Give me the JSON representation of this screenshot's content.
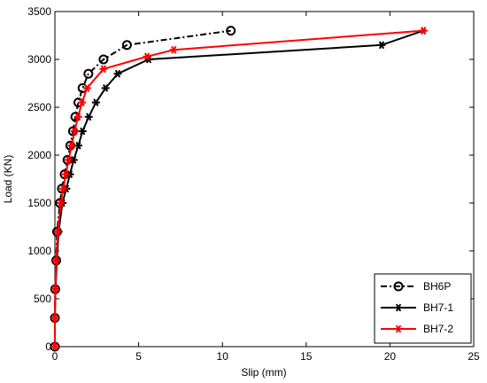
{
  "chart_data": {
    "type": "line",
    "title": "",
    "xlabel": "Slip (mm)",
    "ylabel": "Load (KN)",
    "xlim": [
      0,
      25
    ],
    "ylim": [
      0,
      3500
    ],
    "xticks": [
      0,
      5,
      10,
      15,
      20,
      25
    ],
    "yticks": [
      0,
      500,
      1000,
      1500,
      2000,
      2500,
      3000,
      3500
    ],
    "grid": false,
    "legend_position": "bottom-right",
    "series": [
      {
        "name": "BH6P",
        "color": "#000000",
        "line_style": "dash-dot",
        "marker": "circle",
        "x": [
          0,
          0,
          0.02,
          0.08,
          0.13,
          0.3,
          0.42,
          0.58,
          0.75,
          0.92,
          1.08,
          1.22,
          1.4,
          1.65,
          2.0,
          2.9,
          4.3,
          10.5
        ],
        "y": [
          0,
          300,
          600,
          900,
          1200,
          1500,
          1650,
          1800,
          1950,
          2100,
          2250,
          2400,
          2550,
          2700,
          2850,
          3000,
          3150,
          3300
        ]
      },
      {
        "name": "BH7-1",
        "color": "#000000",
        "line_style": "solid",
        "marker": "star",
        "x": [
          0,
          0,
          0.03,
          0.12,
          0.22,
          0.45,
          0.68,
          0.9,
          1.12,
          1.4,
          1.65,
          2.02,
          2.45,
          3.02,
          3.75,
          5.6,
          19.5,
          22.0
        ],
        "y": [
          0,
          300,
          600,
          900,
          1200,
          1500,
          1650,
          1800,
          1950,
          2100,
          2250,
          2400,
          2550,
          2700,
          2850,
          3000,
          3150,
          3300
        ]
      },
      {
        "name": "BH7-2",
        "color": "#ff0000",
        "line_style": "solid",
        "marker": "star",
        "x": [
          0,
          0,
          0.02,
          0.08,
          0.18,
          0.35,
          0.5,
          0.65,
          0.82,
          1.0,
          1.18,
          1.38,
          1.62,
          1.92,
          2.9,
          5.5,
          7.1,
          22.0
        ],
        "y": [
          0,
          300,
          600,
          900,
          1200,
          1500,
          1650,
          1800,
          1950,
          2100,
          2250,
          2400,
          2550,
          2700,
          2900,
          3030,
          3100,
          3300
        ]
      }
    ]
  }
}
